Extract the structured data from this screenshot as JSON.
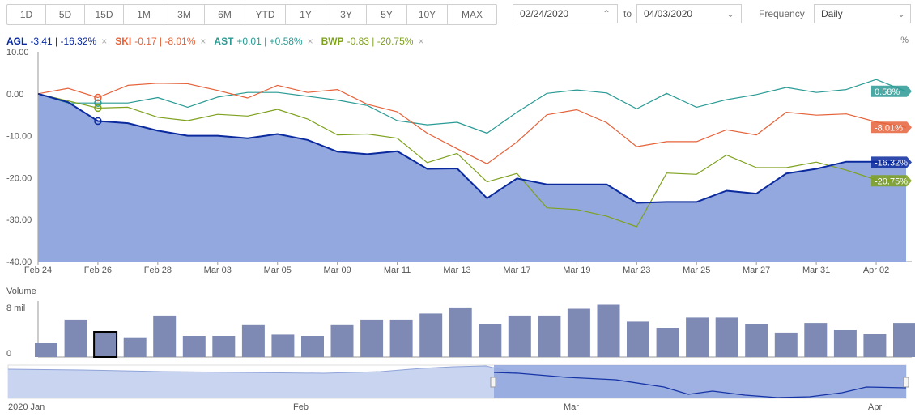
{
  "ranges": [
    "1D",
    "5D",
    "15D",
    "1M",
    "3M",
    "6M",
    "YTD",
    "1Y",
    "3Y",
    "5Y",
    "10Y",
    "MAX"
  ],
  "date_from": "02/24/2020",
  "to_label": "to",
  "date_to": "04/03/2020",
  "frequency_label": "Frequency",
  "frequency_value": "Daily",
  "pct_unit": "%",
  "legend": [
    {
      "ticker": "AGL",
      "text": "-3.41 | -16.32%",
      "color": "#0b2a9e"
    },
    {
      "ticker": "SKI",
      "text": "-0.17 | -8.01%",
      "color": "#e5623a"
    },
    {
      "ticker": "AST",
      "text": "+0.01 | +0.58%",
      "color": "#2a9a94"
    },
    {
      "ticker": "BWP",
      "text": "-0.83 | -20.75%",
      "color": "#7ea11e"
    }
  ],
  "colors": {
    "agl": "#0b2a9e",
    "agl_fill": "#93a8df",
    "ski": "#e5623a",
    "ast": "#2a9a94",
    "bwp": "#7ea11e",
    "volume": "#7f8ab4"
  },
  "chart_data": {
    "type": "line",
    "x": [
      "Feb 24",
      "Feb 25",
      "Feb 26",
      "Feb 27",
      "Feb 28",
      "Mar 02",
      "Mar 03",
      "Mar 04",
      "Mar 05",
      "Mar 06",
      "Mar 09",
      "Mar 10",
      "Mar 11",
      "Mar 12",
      "Mar 13",
      "Mar 16",
      "Mar 17",
      "Mar 18",
      "Mar 19",
      "Mar 20",
      "Mar 23",
      "Mar 24",
      "Mar 25",
      "Mar 26",
      "Mar 27",
      "Mar 30",
      "Mar 31",
      "Apr 01",
      "Apr 02",
      "Apr 03"
    ],
    "x_tick_labels": [
      "Feb 24",
      "Feb 26",
      "Feb 28",
      "Mar 03",
      "Mar 05",
      "Mar 09",
      "Mar 11",
      "Mar 13",
      "Mar 17",
      "Mar 19",
      "Mar 23",
      "Mar 25",
      "Mar 27",
      "Mar 31",
      "Apr 02"
    ],
    "y_ticks": [
      "10.00",
      "0.00",
      "-10.00",
      "-20.00",
      "-30.00",
      "-40.00"
    ],
    "ylim": [
      -40,
      10
    ],
    "series": [
      {
        "name": "AGL",
        "values": [
          0,
          -2,
          -6.5,
          -7,
          -8.8,
          -10,
          -10,
          -10.6,
          -9.6,
          -11,
          -13.8,
          -14.4,
          -13.7,
          -17.9,
          -17.8,
          -24.9,
          -20.2,
          -21.6,
          -21.6,
          -21.6,
          -26,
          -25.8,
          -25.8,
          -23.1,
          -23.8,
          -19,
          -17.9,
          -16.2,
          -16.2,
          -16.32
        ]
      },
      {
        "name": "SKI",
        "values": [
          0,
          1.3,
          -0.9,
          2,
          2.5,
          2.4,
          0.8,
          -1,
          2,
          0.3,
          1,
          -2.5,
          -4.3,
          -9.4,
          -13.1,
          -16.7,
          -11.5,
          -5,
          -3.8,
          -6.9,
          -12.6,
          -11.4,
          -11.4,
          -8.6,
          -9.8,
          -4.4,
          -5.1,
          -4.8,
          -6.7,
          -8.01
        ]
      },
      {
        "name": "AST",
        "values": [
          0,
          -2.2,
          -2.2,
          -2.2,
          -0.9,
          -3.2,
          -0.8,
          0.3,
          0.3,
          -0.6,
          -1.5,
          -2.8,
          -6.4,
          -7.4,
          -6.8,
          -9.4,
          -4.4,
          0.1,
          0.9,
          0.2,
          -3.6,
          0.1,
          -3.2,
          -1.4,
          -0.2,
          1.5,
          0.3,
          1,
          3.4,
          0.58
        ]
      },
      {
        "name": "BWP",
        "values": [
          0,
          -1.7,
          -3.4,
          -3.2,
          -5.6,
          -6.4,
          -4.9,
          -5.3,
          -3.7,
          -6,
          -9.8,
          -9.6,
          -10.6,
          -16.4,
          -14.2,
          -21,
          -19,
          -27.2,
          -27.6,
          -29.2,
          -31.7,
          -18.9,
          -19.2,
          -14.6,
          -17.6,
          -17.6,
          -16.3,
          -18.2,
          -20.5,
          -20.75
        ]
      }
    ],
    "end_labels": [
      "0.58%",
      "-8.01%",
      "-16.32%",
      "-20.75%"
    ],
    "volume": {
      "label": "Volume",
      "y_ticks": [
        "8 mil",
        "0"
      ],
      "ylim": [
        0,
        8
      ],
      "values": [
        2.1,
        5.5,
        3.7,
        2.9,
        6.1,
        3.1,
        3.1,
        4.8,
        3.3,
        3.1,
        4.8,
        5.5,
        5.5,
        6.4,
        7.3,
        4.9,
        6.1,
        6.1,
        7.1,
        7.7,
        5.2,
        4.3,
        5.8,
        5.8,
        4.9,
        3.6,
        5,
        4,
        3.4,
        5
      ]
    },
    "navigator": {
      "x_tick_labels": [
        "2020 Jan",
        "Feb",
        "Mar",
        "Apr"
      ]
    }
  }
}
